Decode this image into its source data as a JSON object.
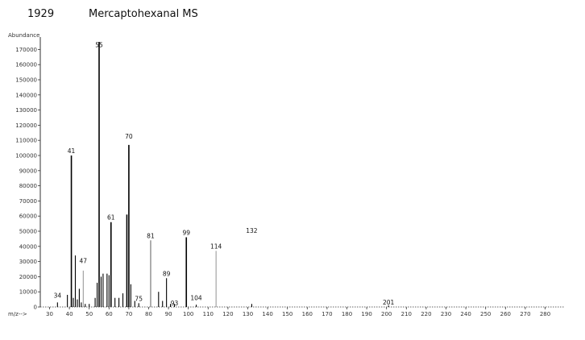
{
  "header": {
    "id": "1929",
    "title": "Mercaptohexanal MS"
  },
  "chart_data": {
    "type": "bar",
    "title": "Mercaptohexanal MS",
    "xlabel": "m/z-->",
    "ylabel": "Abundance",
    "xlim": [
      25,
      285
    ],
    "ylim": [
      0,
      175000
    ],
    "xticks": [
      30,
      40,
      50,
      60,
      70,
      80,
      90,
      100,
      110,
      120,
      130,
      140,
      150,
      160,
      170,
      180,
      190,
      200,
      210,
      220,
      230,
      240,
      250,
      260,
      270,
      280
    ],
    "yticks": [
      0,
      10000,
      20000,
      30000,
      40000,
      50000,
      60000,
      70000,
      80000,
      90000,
      100000,
      110000,
      120000,
      130000,
      140000,
      150000,
      160000,
      170000
    ],
    "peaks": [
      {
        "mz": 34,
        "intensity": 3000
      },
      {
        "mz": 39,
        "intensity": 8000
      },
      {
        "mz": 41,
        "intensity": 100000
      },
      {
        "mz": 42,
        "intensity": 6000
      },
      {
        "mz": 43,
        "intensity": 34000
      },
      {
        "mz": 44,
        "intensity": 5000
      },
      {
        "mz": 45,
        "intensity": 12000
      },
      {
        "mz": 46,
        "intensity": 3000
      },
      {
        "mz": 47,
        "intensity": 24000
      },
      {
        "mz": 48,
        "intensity": 2000
      },
      {
        "mz": 50,
        "intensity": 2000
      },
      {
        "mz": 53,
        "intensity": 6000
      },
      {
        "mz": 54,
        "intensity": 16000
      },
      {
        "mz": 55,
        "intensity": 175000
      },
      {
        "mz": 56,
        "intensity": 20000
      },
      {
        "mz": 57,
        "intensity": 22000
      },
      {
        "mz": 59,
        "intensity": 22000
      },
      {
        "mz": 60,
        "intensity": 21000
      },
      {
        "mz": 61,
        "intensity": 56000
      },
      {
        "mz": 63,
        "intensity": 6000
      },
      {
        "mz": 65,
        "intensity": 6000
      },
      {
        "mz": 67,
        "intensity": 9000
      },
      {
        "mz": 69,
        "intensity": 61000
      },
      {
        "mz": 70,
        "intensity": 107000
      },
      {
        "mz": 71,
        "intensity": 15000
      },
      {
        "mz": 73,
        "intensity": 4000
      },
      {
        "mz": 75,
        "intensity": 2500
      },
      {
        "mz": 81,
        "intensity": 44000
      },
      {
        "mz": 85,
        "intensity": 10000
      },
      {
        "mz": 87,
        "intensity": 4000
      },
      {
        "mz": 89,
        "intensity": 19000
      },
      {
        "mz": 91,
        "intensity": 2000
      },
      {
        "mz": 93,
        "intensity": 2000
      },
      {
        "mz": 99,
        "intensity": 46000
      },
      {
        "mz": 104,
        "intensity": 1500
      },
      {
        "mz": 114,
        "intensity": 37000
      },
      {
        "mz": 132,
        "intensity": 2000
      },
      {
        "mz": 201,
        "intensity": 1000
      }
    ],
    "labeled_peaks": [
      {
        "mz": 34,
        "label": "34"
      },
      {
        "mz": 41,
        "label": "41"
      },
      {
        "mz": 47,
        "label": "47"
      },
      {
        "mz": 55,
        "label": "55"
      },
      {
        "mz": 61,
        "label": "61"
      },
      {
        "mz": 70,
        "label": "70"
      },
      {
        "mz": 75,
        "label": "75"
      },
      {
        "mz": 81,
        "label": "81"
      },
      {
        "mz": 89,
        "label": "89"
      },
      {
        "mz": 93,
        "label": "93"
      },
      {
        "mz": 99,
        "label": "99"
      },
      {
        "mz": 104,
        "label": "104"
      },
      {
        "mz": 114,
        "label": "114"
      },
      {
        "mz": 132,
        "label": "132"
      },
      {
        "mz": 201,
        "label": "201"
      }
    ],
    "colors": {
      "bar": "#000000",
      "axis": "#333333",
      "faint_bar": "#9a9a9a"
    }
  }
}
